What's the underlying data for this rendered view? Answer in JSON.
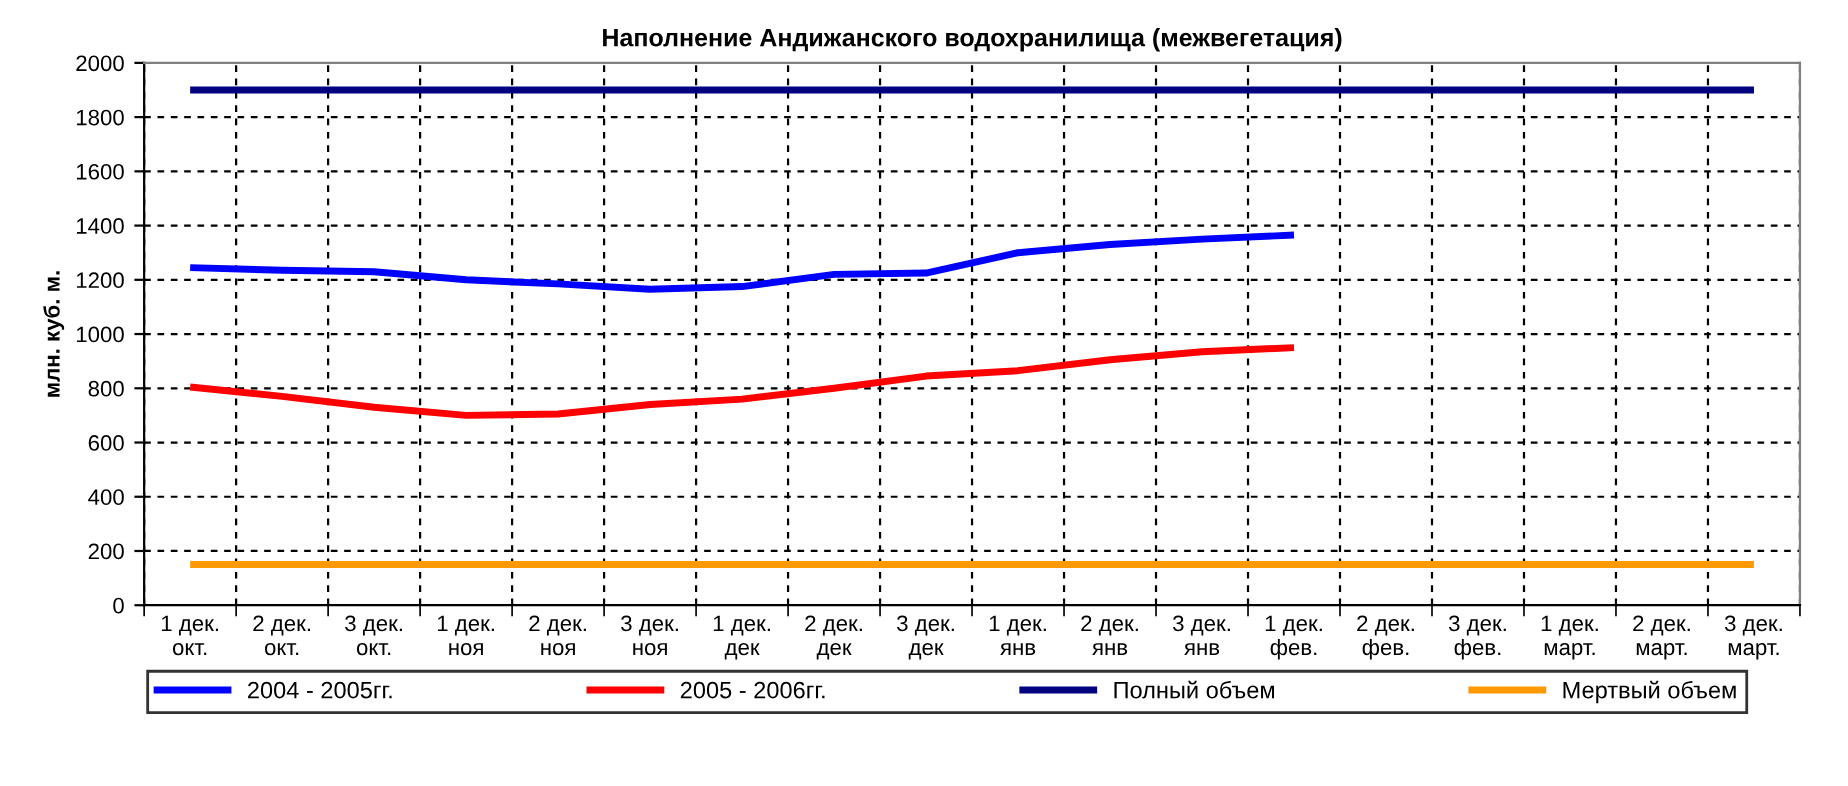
{
  "chart_data": {
    "type": "line",
    "title": "Наполнение Андижанского водохранилища (межвегетация)",
    "ylabel": "млн. куб. м.",
    "categories": [
      "1 дек.\nокт.",
      "2 дек.\nокт.",
      "3 дек.\nокт.",
      "1 дек.\nноя",
      "2 дек.\nноя",
      "3 дек.\nноя",
      "1 дек.\nдек",
      "2 дек.\nдек",
      "3 дек.\nдек",
      "1 дек.\nянв",
      "2 дек.\nянв",
      "3 дек.\nянв",
      "1 дек.\nфев.",
      "2 дек.\nфев.",
      "3 дек.\nфев.",
      "1 дек.\nмарт.",
      "2 дек.\nмарт.",
      "3 дек.\nмарт."
    ],
    "series": [
      {
        "name": "2004 - 2005гг.",
        "color": "#0000ff",
        "values": [
          1245,
          1235,
          1230,
          1200,
          1185,
          1165,
          1175,
          1220,
          1225,
          1300,
          1330,
          1350,
          1365,
          null,
          null,
          null,
          null,
          null
        ]
      },
      {
        "name": "2005 - 2006гг.",
        "color": "#ff0000",
        "values": [
          805,
          770,
          730,
          700,
          705,
          740,
          760,
          800,
          845,
          865,
          905,
          935,
          950,
          null,
          null,
          null,
          null,
          null
        ]
      },
      {
        "name": "Полный объем",
        "color": "#000080",
        "values": [
          1900,
          1900,
          1900,
          1900,
          1900,
          1900,
          1900,
          1900,
          1900,
          1900,
          1900,
          1900,
          1900,
          1900,
          1900,
          1900,
          1900,
          1900
        ]
      },
      {
        "name": "Мертвый объем",
        "color": "#ff9900",
        "values": [
          150,
          150,
          150,
          150,
          150,
          150,
          150,
          150,
          150,
          150,
          150,
          150,
          150,
          150,
          150,
          150,
          150,
          150
        ]
      }
    ],
    "ylim": [
      0,
      2000
    ],
    "yticks": [
      0,
      200,
      400,
      600,
      800,
      1000,
      1200,
      1400,
      1600,
      1800,
      2000
    ],
    "grid": true,
    "legend": "bottom",
    "marker": "none",
    "line_style": "solid"
  }
}
